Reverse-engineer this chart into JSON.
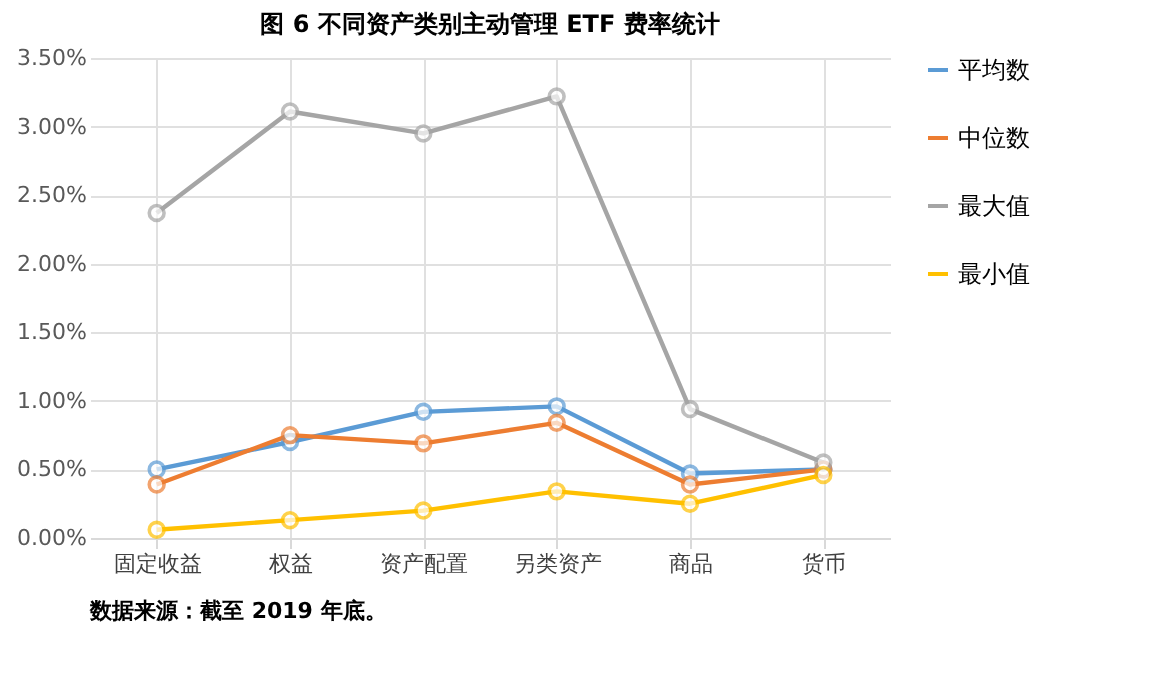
{
  "chart_data": {
    "type": "line",
    "title": "图 6 不同资产类别主动管理 ETF 费率统计",
    "categories": [
      "固定收益",
      "权益",
      "资产配置",
      "另类资产",
      "商品",
      "货币"
    ],
    "series": [
      {
        "name": "平均数",
        "color": "#5b9bd5",
        "values": [
          0.5,
          0.7,
          0.92,
          0.96,
          0.47,
          0.5
        ]
      },
      {
        "name": "中位数",
        "color": "#ed7d31",
        "values": [
          0.39,
          0.75,
          0.69,
          0.84,
          0.39,
          0.5
        ]
      },
      {
        "name": "最大值",
        "color": "#a5a5a5",
        "values": [
          2.37,
          3.11,
          2.95,
          3.22,
          0.94,
          0.55
        ]
      },
      {
        "name": "最小值",
        "color": "#ffc000",
        "values": [
          0.06,
          0.13,
          0.2,
          0.34,
          0.25,
          0.46
        ]
      }
    ],
    "ylim": [
      0,
      3.5
    ],
    "yticks": [
      {
        "value": 0,
        "label": "0.00%"
      },
      {
        "value": 0.5,
        "label": "0.50%"
      },
      {
        "value": 1,
        "label": "1.00%"
      },
      {
        "value": 1.5,
        "label": "1.50%"
      },
      {
        "value": 2,
        "label": "2.00%"
      },
      {
        "value": 2.5,
        "label": "2.50%"
      },
      {
        "value": 3,
        "label": "3.00%"
      },
      {
        "value": 3.5,
        "label": "3.50%"
      }
    ],
    "grid": true,
    "legend": "right",
    "marker": "circle",
    "line_style": "solid",
    "annotations": [
      "数据来源：截至 2019 年底。"
    ]
  }
}
